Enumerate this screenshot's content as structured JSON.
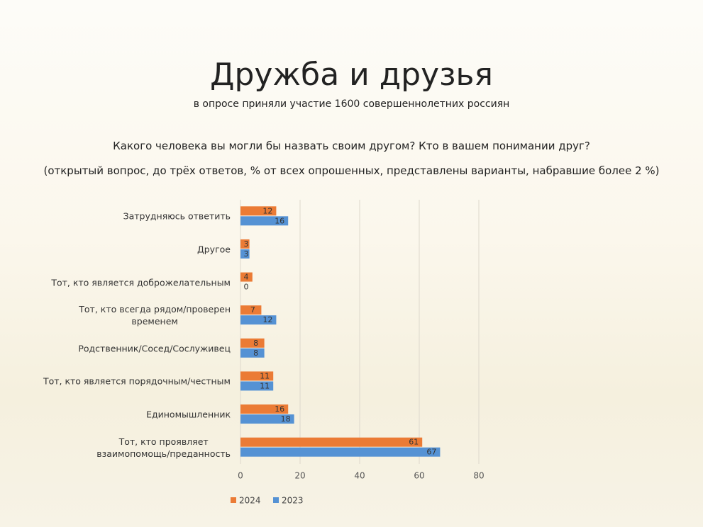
{
  "chart_data": {
    "type": "hbar",
    "title": "Дружба и друзья",
    "subtitle": "в опросе приняли участие 1600 совершеннолетних россиян",
    "question": "Какого человека вы могли бы назвать своим другом? Кто в вашем понимании друг?",
    "note": "(открытый вопрос, до трёх ответов, % от всех опрошенных, представлены варианты, набравшие более 2 %)",
    "categories": [
      "Затрудняюсь ответить",
      "Другое",
      "Тот, кто является доброжелательным",
      "Тот, кто всегда рядом/проверен\nвременем",
      "Родственник/Сосед/Сослуживец",
      "Тот, кто является порядочным/честным",
      "Единомышленник",
      "Тот, кто проявляет\nвзаимопомощь/преданность"
    ],
    "series": [
      {
        "name": "2024",
        "color": "#eb7b35",
        "values": [
          12,
          3,
          4,
          7,
          8,
          11,
          16,
          61
        ]
      },
      {
        "name": "2023",
        "color": "#5592d4",
        "values": [
          16,
          3,
          0,
          12,
          8,
          11,
          18,
          67
        ]
      }
    ],
    "xlim": [
      0,
      80
    ],
    "xticks": [
      0,
      20,
      40,
      60,
      80
    ],
    "grid": true,
    "legend": "bottom"
  }
}
